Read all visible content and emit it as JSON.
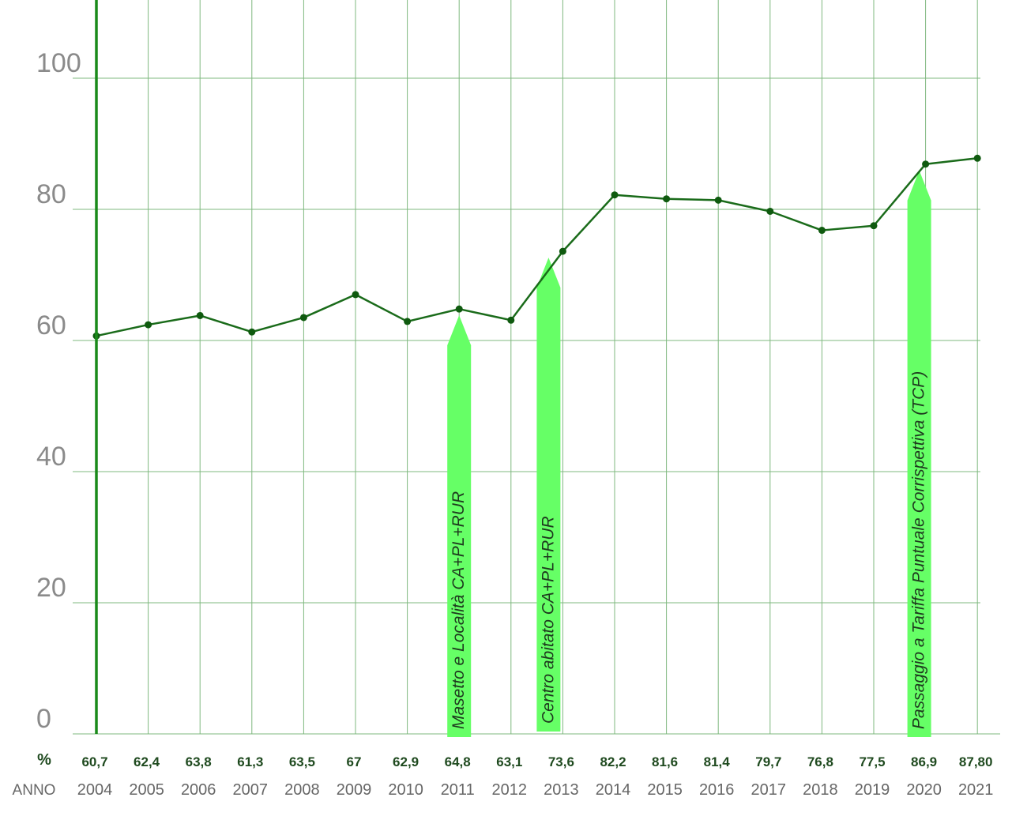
{
  "chart_data": {
    "type": "line",
    "title": "",
    "xlabel": "ANNO",
    "ylabel": "%",
    "ylim": [
      0,
      110
    ],
    "yticks": [
      0,
      20,
      40,
      60,
      80,
      100
    ],
    "grid": true,
    "categories": [
      "2004",
      "2005",
      "2006",
      "2007",
      "2008",
      "2009",
      "2010",
      "2011",
      "2012",
      "2013",
      "2014",
      "2015",
      "2016",
      "2017",
      "2018",
      "2019",
      "2020",
      "2021"
    ],
    "values": [
      60.7,
      62.4,
      63.8,
      61.3,
      63.5,
      67,
      62.9,
      64.8,
      63.1,
      73.6,
      82.2,
      81.6,
      81.4,
      79.7,
      76.8,
      77.5,
      86.9,
      87.8
    ],
    "value_labels": [
      "60,7",
      "62,4",
      "63,8",
      "61,3",
      "63,5",
      "67",
      "62,9",
      "64,8",
      "63,1",
      "73,6",
      "82,2",
      "81,6",
      "81,4",
      "79,7",
      "76,8",
      "77,5",
      "86,9",
      "87,80"
    ],
    "value_row_label": "%",
    "year_row_label": "ANNO",
    "annotations": [
      {
        "year": "2011",
        "text": "Masetto e Località CA+PL+RUR"
      },
      {
        "year": "2013",
        "text": "Centro abitato CA+PL+RUR"
      },
      {
        "year": "2020",
        "text": "Passaggio a  Tariffa Puntuale Corrispettiva (TCP)"
      }
    ],
    "colors": {
      "line": "#1a6b1a",
      "marker": "#0f5a0f",
      "grid": "#7fb87f",
      "axis": "#1a8a1a",
      "arrow": "#66ff66",
      "value_text": "#1f4a1f"
    }
  }
}
